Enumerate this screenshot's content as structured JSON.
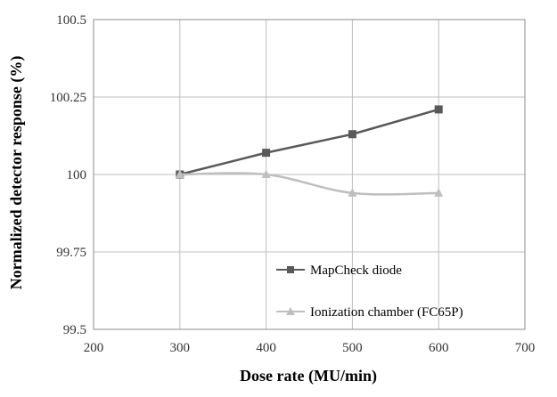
{
  "chart_data": {
    "type": "line",
    "xlabel": "Dose rate (MU/min)",
    "ylabel": "Normalized detector response (%)",
    "xlim": [
      200,
      700
    ],
    "ylim": [
      99.5,
      100.5
    ],
    "x_ticks": [
      "200",
      "300",
      "400",
      "500",
      "600",
      "700"
    ],
    "y_ticks": [
      "99.5",
      "99.75",
      "100",
      "100.25",
      "100.5"
    ],
    "x_tick_values": [
      200,
      300,
      400,
      500,
      600,
      700
    ],
    "y_tick_values": [
      99.5,
      99.75,
      100,
      100.25,
      100.5
    ],
    "grid": true,
    "legend_position": "bottom-right",
    "series": [
      {
        "name": "MapCheck diode",
        "marker": "square",
        "smooth": false,
        "color": "#595959",
        "x": [
          300,
          400,
          500,
          600
        ],
        "y": [
          100.0,
          100.07,
          100.13,
          100.21
        ]
      },
      {
        "name": "Ionization chamber (FC65P)",
        "marker": "triangle",
        "smooth": true,
        "color": "#bfbfbf",
        "x": [
          300,
          400,
          500,
          600
        ],
        "y": [
          100.0,
          100.0,
          99.94,
          99.94
        ]
      }
    ]
  }
}
